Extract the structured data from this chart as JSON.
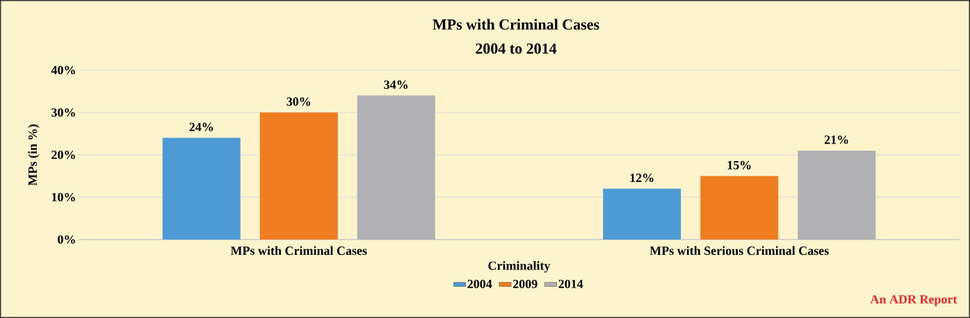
{
  "chart_data": {
    "type": "bar",
    "title": "MPs with Criminal Cases",
    "subtitle": "2004 to 2014",
    "xlabel": "Criminality",
    "ylabel": "MPs (in %)",
    "categories": [
      "MPs with Criminal Cases",
      "MPs with Serious Criminal Cases"
    ],
    "series": [
      {
        "name": "2004",
        "color": "#4e9ad4",
        "values": [
          24,
          12
        ],
        "value_labels": [
          "24%",
          "12%"
        ]
      },
      {
        "name": "2009",
        "color": "#ee7d22",
        "values": [
          30,
          15
        ],
        "value_labels": [
          "30%",
          "15%"
        ]
      },
      {
        "name": "2014",
        "color": "#b1b1b4",
        "values": [
          34,
          21
        ],
        "value_labels": [
          "34%",
          "21%"
        ]
      }
    ],
    "ylim": [
      0,
      40
    ],
    "yticks": [
      {
        "value": 0,
        "label": "0%"
      },
      {
        "value": 10,
        "label": "10%"
      },
      {
        "value": 20,
        "label": "20%"
      },
      {
        "value": 30,
        "label": "30%"
      },
      {
        "value": 40,
        "label": "40%"
      }
    ],
    "grid": true,
    "legend": "bottom",
    "annotations": [
      "An ADR Report"
    ]
  }
}
